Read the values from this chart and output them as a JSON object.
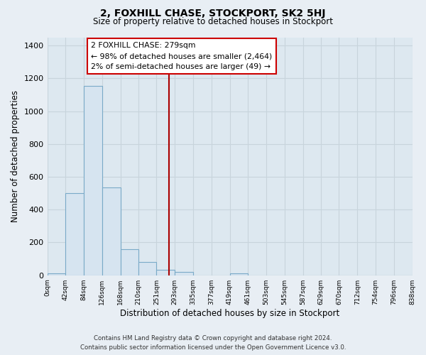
{
  "title": "2, FOXHILL CHASE, STOCKPORT, SK2 5HJ",
  "subtitle": "Size of property relative to detached houses in Stockport",
  "xlabel": "Distribution of detached houses by size in Stockport",
  "ylabel": "Number of detached properties",
  "bar_color": "#d6e4f0",
  "bar_edge_color": "#7aaac8",
  "bin_edges": [
    0,
    42,
    84,
    126,
    168,
    210,
    251,
    293,
    335,
    377,
    419,
    461,
    503,
    545,
    587,
    629,
    670,
    712,
    754,
    796,
    838
  ],
  "bar_heights": [
    10,
    500,
    1155,
    535,
    160,
    83,
    35,
    20,
    0,
    0,
    10,
    0,
    0,
    0,
    0,
    0,
    0,
    0,
    0,
    0
  ],
  "tick_labels": [
    "0sqm",
    "42sqm",
    "84sqm",
    "126sqm",
    "168sqm",
    "210sqm",
    "251sqm",
    "293sqm",
    "335sqm",
    "377sqm",
    "419sqm",
    "461sqm",
    "503sqm",
    "545sqm",
    "587sqm",
    "629sqm",
    "670sqm",
    "712sqm",
    "754sqm",
    "796sqm",
    "838sqm"
  ],
  "vline_x": 279,
  "vline_color": "#aa0000",
  "annotation_title": "2 FOXHILL CHASE: 279sqm",
  "annotation_line1": "← 98% of detached houses are smaller (2,464)",
  "annotation_line2": "2% of semi-detached houses are larger (49) →",
  "ylim": [
    0,
    1450
  ],
  "yticks": [
    0,
    200,
    400,
    600,
    800,
    1000,
    1200,
    1400
  ],
  "footer_line1": "Contains HM Land Registry data © Crown copyright and database right 2024.",
  "footer_line2": "Contains public sector information licensed under the Open Government Licence v3.0.",
  "bg_color": "#e8eef4",
  "grid_color": "#c8d4dc",
  "plot_bg_color": "#dde8f0"
}
